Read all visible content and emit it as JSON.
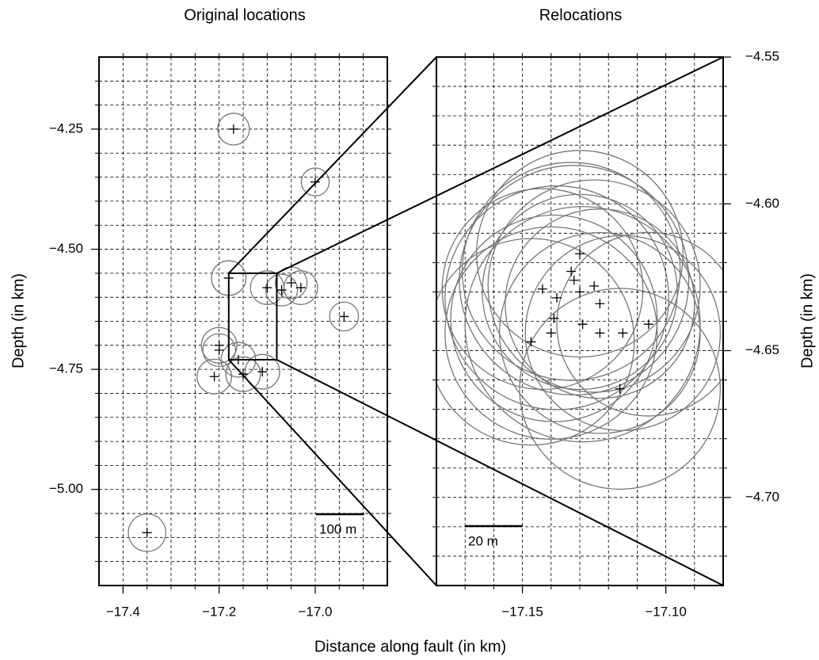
{
  "chart_data": [
    {
      "type": "scatter",
      "title": "Original locations",
      "xlabel": "Distance along fault (in km)",
      "ylabel": "Depth (in km)",
      "yaxis_side": "left",
      "xlim": [
        -17.45,
        -16.85
      ],
      "ylim": [
        -5.2,
        -4.1
      ],
      "xticks": [
        {
          "value": -17.4,
          "label": "−17.4"
        },
        {
          "value": -17.2,
          "label": "−17.2"
        },
        {
          "value": -17.0,
          "label": "−17.0"
        }
      ],
      "yticks": [
        {
          "value": -4.25,
          "label": "−4.25"
        },
        {
          "value": -4.5,
          "label": "−4.50"
        },
        {
          "value": -4.75,
          "label": "−4.75"
        },
        {
          "value": -5.0,
          "label": "−5.00"
        }
      ],
      "xgrid": [
        -17.4,
        -17.35,
        -17.3,
        -17.25,
        -17.2,
        -17.15,
        -17.1,
        -17.05,
        -17.0,
        -16.95,
        -16.9
      ],
      "ygrid": [
        -4.15,
        -4.2,
        -4.25,
        -4.3,
        -4.35,
        -4.4,
        -4.45,
        -4.5,
        -4.55,
        -4.6,
        -4.65,
        -4.7,
        -4.75,
        -4.8,
        -4.85,
        -4.9,
        -4.95,
        -5.0,
        -5.05,
        -5.1,
        -5.15
      ],
      "grid": true,
      "scalebar": {
        "label": "100 m",
        "length": 0.1
      },
      "series": [
        {
          "color": "#777777",
          "x": [
            -17.17,
            -17.0,
            -17.18,
            -17.1,
            -17.07,
            -17.05,
            -17.03,
            -16.94,
            -17.2,
            -17.2,
            -17.21,
            -17.16,
            -17.15,
            -17.11,
            -17.35
          ],
          "y": [
            -4.25,
            -4.36,
            -4.56,
            -4.58,
            -4.585,
            -4.57,
            -4.58,
            -4.64,
            -4.7,
            -4.71,
            -4.765,
            -4.73,
            -4.76,
            -4.755,
            -5.09
          ],
          "error": [
            0.033,
            0.029,
            0.036,
            0.035,
            0.033,
            0.033,
            0.035,
            0.03,
            0.037,
            0.034,
            0.036,
            0.036,
            0.036,
            0.036,
            0.039
          ]
        }
      ]
    },
    {
      "type": "scatter",
      "title": "Relocations",
      "ylabel": "Depth (in km)",
      "yaxis_side": "right",
      "xlim": [
        -17.18,
        -17.08
      ],
      "ylim": [
        -4.73,
        -4.55
      ],
      "xticks": [
        {
          "value": -17.15,
          "label": "−17.15"
        },
        {
          "value": -17.1,
          "label": "−17.10"
        }
      ],
      "yticks": [
        {
          "value": -4.55,
          "label": "−4.55"
        },
        {
          "value": -4.6,
          "label": "−4.60"
        },
        {
          "value": -4.65,
          "label": "−4.65"
        },
        {
          "value": -4.7,
          "label": "−4.70"
        }
      ],
      "xgrid": [
        -17.17,
        -17.16,
        -17.15,
        -17.14,
        -17.13,
        -17.12,
        -17.11,
        -17.1,
        -17.09
      ],
      "ygrid": [
        -4.56,
        -4.57,
        -4.58,
        -4.59,
        -4.6,
        -4.61,
        -4.62,
        -4.63,
        -4.64,
        -4.65,
        -4.66,
        -4.67,
        -4.68,
        -4.69,
        -4.7,
        -4.71,
        -4.72
      ],
      "grid": true,
      "scalebar": {
        "label": "20 m",
        "length": 0.02
      },
      "series": [
        {
          "color": "#777777",
          "x": [
            -17.13,
            -17.133,
            -17.143,
            -17.125,
            -17.132,
            -17.13,
            -17.138,
            -17.123,
            -17.139,
            -17.129,
            -17.14,
            -17.123,
            -17.115,
            -17.106,
            -17.147,
            -17.116
          ],
          "y": [
            -4.617,
            -4.623,
            -4.629,
            -4.628,
            -4.626,
            -4.63,
            -4.632,
            -4.634,
            -4.639,
            -4.641,
            -4.644,
            -4.644,
            -4.644,
            -4.641,
            -4.647,
            -4.663
          ],
          "error": [
            0.036,
            0.038,
            0.035,
            0.037,
            0.04,
            0.034,
            0.039,
            0.033,
            0.036,
            0.041,
            0.037,
            0.035,
            0.034,
            0.032,
            0.036,
            0.035
          ]
        }
      ]
    }
  ]
}
